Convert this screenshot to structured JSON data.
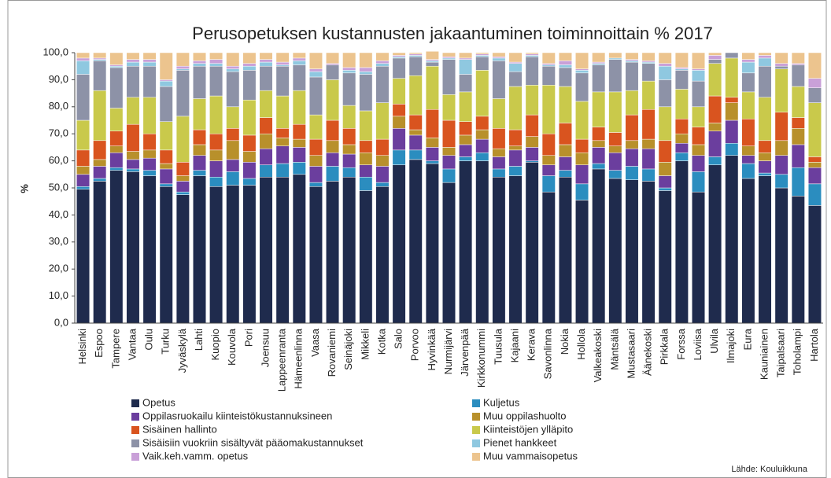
{
  "chart_data": {
    "type": "stacked_bar",
    "title": "Perusopetuksen kustannusten jakaantuminen toiminnoittain % 2017",
    "y_label": "%",
    "source": "Lähde: Kouluikkuna",
    "categories": [
      "Helsinki",
      "Espoo",
      "Tampere",
      "Vantaa",
      "Oulu",
      "Turku",
      "Jyväskylä",
      "Lahti",
      "Kuopio",
      "Kouvola",
      "Pori",
      "Joensuu",
      "Lappeenranta",
      "Hämeenlinna",
      "Vaasa",
      "Rovaniemi",
      "Seinäjoki",
      "Mikkeli",
      "Kotka",
      "Salo",
      "Porvoo",
      "Hyvinkää",
      "Nurmijärvi",
      "Järvenpää",
      "Kirkkonummi",
      "Tuusula",
      "Kajaani",
      "Kerava",
      "Savonlinna",
      "Nokia",
      "Hollola",
      "Valkeakoski",
      "Mäntsälä",
      "Mustasaari",
      "Äänekoski",
      "Pirkkala",
      "Forssa",
      "Loviisa",
      "Ulvila",
      "Ilmajoki",
      "Eura",
      "Kauniainen",
      "Taipalsaari",
      "Toholampi",
      "Hartola"
    ],
    "ylim": [
      0,
      100
    ],
    "yticks": [
      {
        "value": 0,
        "label": "0,0"
      },
      {
        "value": 10,
        "label": "10,0"
      },
      {
        "value": 20,
        "label": "20,0"
      },
      {
        "value": 30,
        "label": "30,0"
      },
      {
        "value": 40,
        "label": "40,0"
      },
      {
        "value": 50,
        "label": "50,0"
      },
      {
        "value": 60,
        "label": "60,0"
      },
      {
        "value": 70,
        "label": "70,0"
      },
      {
        "value": 80,
        "label": "80,0"
      },
      {
        "value": 90,
        "label": "90,0"
      },
      {
        "value": 100,
        "label": "100,0"
      }
    ],
    "grid": false,
    "series": [
      {
        "name": "Opetus",
        "color": "#1f2b4d",
        "values": [
          49.5,
          52.5,
          56.5,
          56,
          54.5,
          50.5,
          47.5,
          54.5,
          50.5,
          51,
          51,
          54,
          54,
          55,
          50.5,
          52.5,
          54,
          49,
          50.5,
          58.5,
          60.5,
          59,
          52,
          60,
          60,
          54,
          54.5,
          59.5,
          48.5,
          54,
          45.5,
          57,
          53.5,
          53,
          52.5,
          49,
          60,
          48.5,
          58.5,
          62,
          53.5,
          54.5,
          50,
          47,
          43.5
        ]
      },
      {
        "name": "Kuljetus",
        "color": "#2b8dbf",
        "values": [
          1,
          1,
          1,
          1,
          2,
          1,
          1,
          2,
          3.5,
          5,
          2.5,
          4.5,
          5,
          4.5,
          1.5,
          5.5,
          3.5,
          5,
          1.5,
          5.5,
          3.5,
          1,
          5,
          1.5,
          3,
          3,
          3.5,
          0.5,
          6,
          2.5,
          6,
          2,
          3,
          5,
          4.5,
          1,
          3,
          7.5,
          3,
          4.5,
          5.5,
          1,
          5,
          10.5,
          8
        ]
      },
      {
        "name": "Oppilasruokailu kiinteistökustannuksineen",
        "color": "#6b3e9e",
        "values": [
          4.5,
          4.5,
          5.5,
          3.5,
          4.5,
          5.5,
          4,
          5.5,
          6,
          4.5,
          6,
          6,
          6.5,
          5.5,
          6,
          5,
          5,
          4.5,
          6,
          8,
          5.5,
          5,
          5,
          4.5,
          5,
          4.5,
          6,
          5,
          4,
          5,
          7,
          6,
          6.5,
          6.5,
          7.5,
          4.5,
          3.5,
          6,
          9.5,
          8.5,
          3,
          4.5,
          7,
          8.5,
          6
        ]
      },
      {
        "name": "Muu oppilashuolto",
        "color": "#b8902b",
        "values": [
          3,
          2.5,
          2.5,
          3,
          3,
          2,
          2,
          4,
          4,
          7,
          4,
          5.5,
          3,
          3,
          4,
          4.5,
          3.5,
          4.5,
          4,
          4.5,
          2,
          3.5,
          3,
          3.5,
          3.5,
          3,
          1.5,
          4,
          3.5,
          4.5,
          4.5,
          2.5,
          2.5,
          3,
          3.5,
          5,
          3.5,
          4,
          3,
          6.5,
          3.5,
          3,
          5.5,
          6,
          2
        ]
      },
      {
        "name": "Sisäinen hallinto",
        "color": "#d9541f",
        "values": [
          6,
          7,
          5.5,
          10,
          6,
          5,
          5,
          5.5,
          6,
          4.5,
          6,
          6,
          3.5,
          5.5,
          6,
          7.5,
          6,
          4.5,
          6,
          4.5,
          5.5,
          10.5,
          10,
          5,
          5,
          7.5,
          6,
          8,
          8,
          8,
          5,
          5,
          5,
          9.5,
          11,
          8,
          5.5,
          6.5,
          10,
          2,
          10,
          4.5,
          10.5,
          4,
          2
        ]
      },
      {
        "name": "Kiinteistöjen ylläpito",
        "color": "#c9c94b",
        "values": [
          11,
          18.5,
          8.5,
          10,
          13.5,
          10.5,
          17,
          11.5,
          14,
          8,
          13,
          10,
          12,
          12.5,
          9,
          15,
          8.5,
          11,
          13.5,
          9.5,
          14.5,
          16,
          9.5,
          11,
          17,
          11,
          16,
          11,
          18,
          13.5,
          14,
          13,
          15,
          9,
          10.5,
          12.5,
          11,
          7.5,
          12,
          14.5,
          10,
          16,
          16,
          11.5,
          20
        ]
      },
      {
        "name": "Sisäisiin vuokriin sisältyvät pääomakustannukset",
        "color": "#8d92a7",
        "values": [
          17,
          11,
          15,
          11.5,
          11.5,
          13,
          17,
          12,
          11,
          13,
          11,
          9,
          11,
          9.5,
          14,
          5.5,
          12,
          13.5,
          13.5,
          7.5,
          7,
          1.5,
          13,
          6.5,
          5,
          14,
          5.5,
          10.5,
          7,
          7,
          10.5,
          10,
          12,
          10.5,
          6.5,
          10,
          7,
          9.5,
          1.5,
          2,
          7,
          11.5,
          1,
          8,
          5.5
        ]
      },
      {
        "name": "Pienet hankkeet",
        "color": "#8fc8e0",
        "values": [
          5,
          0.5,
          0.5,
          1.5,
          1.5,
          2,
          0.5,
          1,
          1,
          1,
          1.5,
          1.5,
          0.5,
          1.5,
          2,
          0,
          1,
          1,
          1,
          0.5,
          0.5,
          0.5,
          0.5,
          5.5,
          0.5,
          1,
          3,
          0.5,
          0.5,
          1,
          1,
          0.5,
          0.5,
          0.5,
          0.5,
          5,
          0.5,
          4,
          0,
          0,
          4,
          3,
          0,
          0,
          0
        ]
      },
      {
        "name": "Vaik.keh.vamm. opetus",
        "color": "#c9a0d8",
        "values": [
          1,
          0.5,
          0.5,
          1,
          1,
          0.5,
          1,
          1,
          1.5,
          1,
          1,
          1,
          1,
          1,
          1,
          0.5,
          1,
          1.5,
          1,
          0.5,
          0.5,
          0.5,
          0.5,
          0.5,
          0.5,
          0.5,
          0.5,
          0.5,
          0.5,
          1.5,
          0.5,
          0.5,
          0,
          0.5,
          0.5,
          1,
          0.5,
          0.5,
          1.5,
          0,
          1,
          1,
          1,
          0.5,
          3.5
        ]
      },
      {
        "name": "Muu vammaisopetus",
        "color": "#ecc48e",
        "values": [
          2,
          2,
          4.5,
          2.5,
          2.5,
          10,
          5,
          3,
          2.5,
          5,
          4,
          2.5,
          3.5,
          2,
          6,
          4,
          5.5,
          5.5,
          3,
          1,
          0.5,
          3,
          1.5,
          2,
          0.5,
          1.5,
          3.5,
          0.5,
          4,
          3,
          6,
          3.5,
          2,
          2.5,
          3,
          4,
          5.5,
          6,
          1,
          0,
          2.5,
          1,
          4,
          4,
          9.5
        ]
      }
    ]
  }
}
